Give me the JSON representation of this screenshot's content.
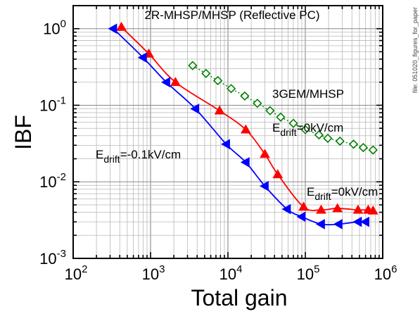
{
  "side_note": "file: 051020_figures_for_paper",
  "chart_data": {
    "type": "scatter",
    "title": "2R-MHSP/MHSP (Reflective PC)",
    "xlabel": "Total gain",
    "ylabel": "IBF",
    "xscale": "log",
    "yscale": "log",
    "xlim": [
      100,
      1000000
    ],
    "ylim": [
      0.001,
      2
    ],
    "grid": true,
    "x_ticks": [
      {
        "value": 100,
        "base": "10",
        "exp": "2"
      },
      {
        "value": 1000,
        "base": "10",
        "exp": "3"
      },
      {
        "value": 10000,
        "base": "10",
        "exp": "4"
      },
      {
        "value": 100000,
        "base": "10",
        "exp": "5"
      },
      {
        "value": 1000000,
        "base": "10",
        "exp": "6"
      }
    ],
    "y_ticks": [
      {
        "value": 1,
        "base": "10",
        "exp": "0"
      },
      {
        "value": 0.1,
        "base": "10",
        "exp": "-1"
      },
      {
        "value": 0.01,
        "base": "10",
        "exp": "-2"
      },
      {
        "value": 0.001,
        "base": "10",
        "exp": "-3"
      }
    ],
    "annotations": [
      {
        "id": "ann-3gem",
        "lines": [
          "3GEM/MHSP"
        ]
      },
      {
        "id": "ann-3gem-field",
        "prefix": "E",
        "sub": "drift",
        "suffix": "=0kV/cm"
      },
      {
        "id": "ann-blue-field",
        "prefix": "E",
        "sub": "drift",
        "suffix": "=-0.1kV/cm"
      },
      {
        "id": "ann-red-field",
        "prefix": "E",
        "sub": "drift",
        "suffix": "=0kV/cm"
      }
    ],
    "series": [
      {
        "id": "red",
        "color": "#ff0000",
        "marker": "triangle-up",
        "filled": true,
        "connect": "smooth-solid",
        "x": [
          420,
          950,
          2100,
          7800,
          17000,
          30000,
          44000,
          95000,
          160000,
          260000,
          480000,
          650000,
          750000
        ],
        "y": [
          1.05,
          0.47,
          0.2,
          0.085,
          0.048,
          0.023,
          0.0125,
          0.0047,
          0.0043,
          0.0045,
          0.0043,
          0.0043,
          0.0042
        ]
      },
      {
        "id": "blue",
        "color": "#0000ff",
        "marker": "triangle-left",
        "filled": true,
        "connect": "smooth-solid",
        "x": [
          330,
          800,
          1600,
          3800,
          9500,
          17000,
          30000,
          58000,
          90000,
          160000,
          270000,
          480000,
          600000
        ],
        "y": [
          1.0,
          0.42,
          0.2,
          0.09,
          0.031,
          0.018,
          0.0088,
          0.0044,
          0.0035,
          0.0028,
          0.0028,
          0.003,
          0.003
        ]
      },
      {
        "id": "green",
        "color": "#008000",
        "marker": "diamond",
        "filled": false,
        "connect": "dotted",
        "x": [
          3500,
          5200,
          7400,
          11000,
          16500,
          24000,
          35000,
          48000,
          70000,
          100000,
          150000,
          195000,
          280000,
          420000,
          560000,
          750000
        ],
        "y": [
          0.33,
          0.26,
          0.21,
          0.165,
          0.132,
          0.106,
          0.085,
          0.07,
          0.058,
          0.048,
          0.041,
          0.037,
          0.034,
          0.031,
          0.028,
          0.026
        ]
      }
    ]
  }
}
